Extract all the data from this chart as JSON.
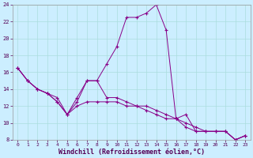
{
  "xlabel": "Windchill (Refroidissement éolien,°C)",
  "ylabel": "",
  "bg_color": "#cceeff",
  "line_color": "#880088",
  "grid_color": "#aadddd",
  "xlim": [
    -0.5,
    23.5
  ],
  "ylim": [
    8,
    24
  ],
  "xticks": [
    0,
    1,
    2,
    3,
    4,
    5,
    6,
    7,
    8,
    9,
    10,
    11,
    12,
    13,
    14,
    15,
    16,
    17,
    18,
    19,
    20,
    21,
    22,
    23
  ],
  "yticks": [
    8,
    10,
    12,
    14,
    16,
    18,
    20,
    22,
    24
  ],
  "line1_x": [
    0,
    1,
    2,
    3,
    4,
    5,
    6,
    7,
    8,
    9,
    10,
    11,
    12,
    13,
    14,
    15,
    16,
    17,
    18,
    19,
    20,
    21,
    22,
    23
  ],
  "line1_y": [
    16.5,
    15.0,
    14.0,
    13.5,
    13.0,
    11.0,
    13.0,
    15.0,
    15.0,
    17.0,
    19.0,
    22.5,
    22.5,
    23.0,
    24.0,
    21.0,
    10.5,
    11.0,
    9.0,
    9.0,
    9.0,
    9.0,
    8.0,
    8.5
  ],
  "line2_x": [
    0,
    1,
    2,
    3,
    4,
    5,
    6,
    7,
    8,
    9,
    10,
    11,
    12,
    13,
    14,
    15,
    16,
    17,
    18,
    19,
    20,
    21,
    22,
    23
  ],
  "line2_y": [
    16.5,
    15.0,
    14.0,
    13.5,
    12.5,
    11.0,
    12.5,
    15.0,
    15.0,
    13.0,
    13.0,
    12.5,
    12.0,
    12.0,
    11.5,
    11.0,
    10.5,
    10.0,
    9.5,
    9.0,
    9.0,
    9.0,
    8.0,
    8.5
  ],
  "line3_x": [
    0,
    1,
    2,
    3,
    4,
    5,
    6,
    7,
    8,
    9,
    10,
    11,
    12,
    13,
    14,
    15,
    16,
    17,
    18,
    19,
    20,
    21,
    22,
    23
  ],
  "line3_y": [
    16.5,
    15.0,
    14.0,
    13.5,
    12.5,
    11.0,
    12.0,
    12.5,
    12.5,
    12.5,
    12.5,
    12.0,
    12.0,
    11.5,
    11.0,
    10.5,
    10.5,
    9.5,
    9.0,
    9.0,
    9.0,
    9.0,
    8.0,
    8.5
  ],
  "tick_fontsize": 5,
  "xlabel_fontsize": 6,
  "tick_color": "#550055",
  "xlabel_color": "#550055"
}
